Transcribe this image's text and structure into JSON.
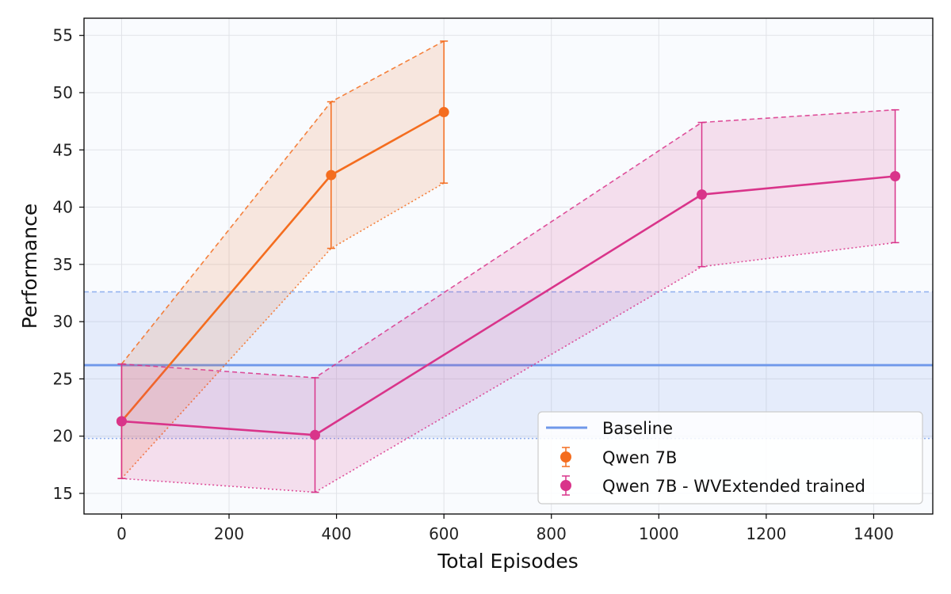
{
  "chart_data": {
    "type": "line",
    "title": "",
    "xlabel": "Total Episodes",
    "ylabel": "Performance",
    "xlim": [
      -70,
      1510
    ],
    "ylim": [
      13.2,
      56.5
    ],
    "x_ticks": [
      0,
      200,
      400,
      600,
      800,
      1000,
      1200,
      1400
    ],
    "y_ticks": [
      15,
      20,
      25,
      30,
      35,
      40,
      45,
      50,
      55
    ],
    "grid": true,
    "legend_position": "bottom-right",
    "baseline": {
      "name": "Baseline",
      "value": 26.2,
      "upper": 32.6,
      "lower": 19.8,
      "color": "#6f98ea"
    },
    "series": [
      {
        "name": "Qwen 7B",
        "color": "#f46d1f",
        "x": [
          0,
          390,
          600
        ],
        "y": [
          21.3,
          42.8,
          48.3
        ],
        "upper": [
          26.3,
          49.2,
          54.5
        ],
        "lower": [
          16.3,
          36.4,
          42.1
        ]
      },
      {
        "name": "Qwen 7B - WVExtended trained",
        "color": "#d9348a",
        "x": [
          0,
          360,
          1080,
          1440
        ],
        "y": [
          21.3,
          20.1,
          41.1,
          42.7
        ],
        "upper": [
          26.3,
          25.1,
          47.4,
          48.5
        ],
        "lower": [
          16.3,
          15.1,
          34.8,
          36.9
        ]
      }
    ]
  }
}
